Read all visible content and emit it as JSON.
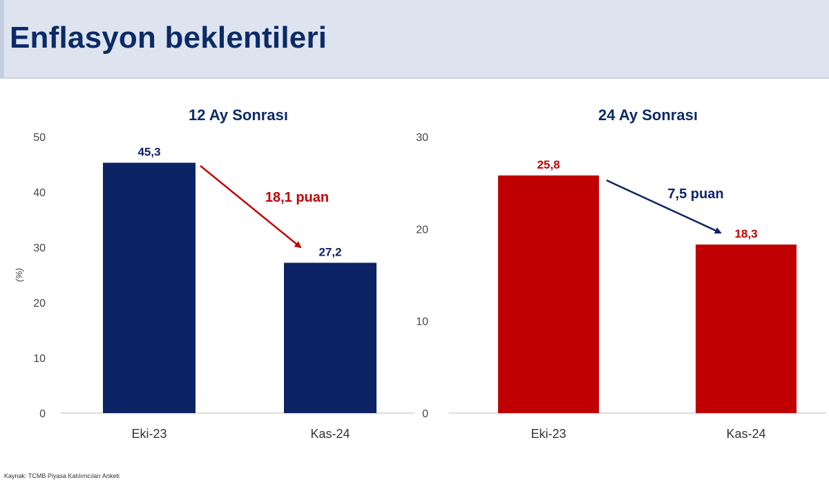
{
  "page": {
    "title": "Enflasyon beklentileri",
    "source": "Kaynak: TCMB Piyasa Katılımcıları Anketi"
  },
  "colors": {
    "header_bg": "#dde4f0",
    "title": "#0c2a66",
    "navy": "#0c2366",
    "red": "#c00000",
    "axis_text": "#444444"
  },
  "chart_data": [
    {
      "type": "bar",
      "title": "12 Ay Sonrası",
      "ylabel": "(%)",
      "categories": [
        "Eki-23",
        "Kas-24"
      ],
      "values": [
        45.3,
        27.2
      ],
      "data_labels": [
        "45,3",
        "27,2"
      ],
      "ylim": [
        0,
        50
      ],
      "yticks": [
        0,
        10,
        20,
        30,
        40,
        50
      ],
      "bar_color": "#0c2366",
      "label_color": "#0c2366",
      "annotation": {
        "text": "18,1 puan",
        "color": "#c00000",
        "arrow_color": "#c00000"
      },
      "grid": false
    },
    {
      "type": "bar",
      "title": "24 Ay Sonrası",
      "ylabel": "",
      "categories": [
        "Eki-23",
        "Kas-24"
      ],
      "values": [
        25.8,
        18.3
      ],
      "data_labels": [
        "25,8",
        "18,3"
      ],
      "ylim": [
        0,
        30
      ],
      "yticks": [
        0,
        10,
        20,
        30
      ],
      "bar_color": "#c00000",
      "label_color": "#c00000",
      "annotation": {
        "text": "7,5 puan",
        "color": "#0c2366",
        "arrow_color": "#0c2366"
      },
      "grid": false
    }
  ]
}
